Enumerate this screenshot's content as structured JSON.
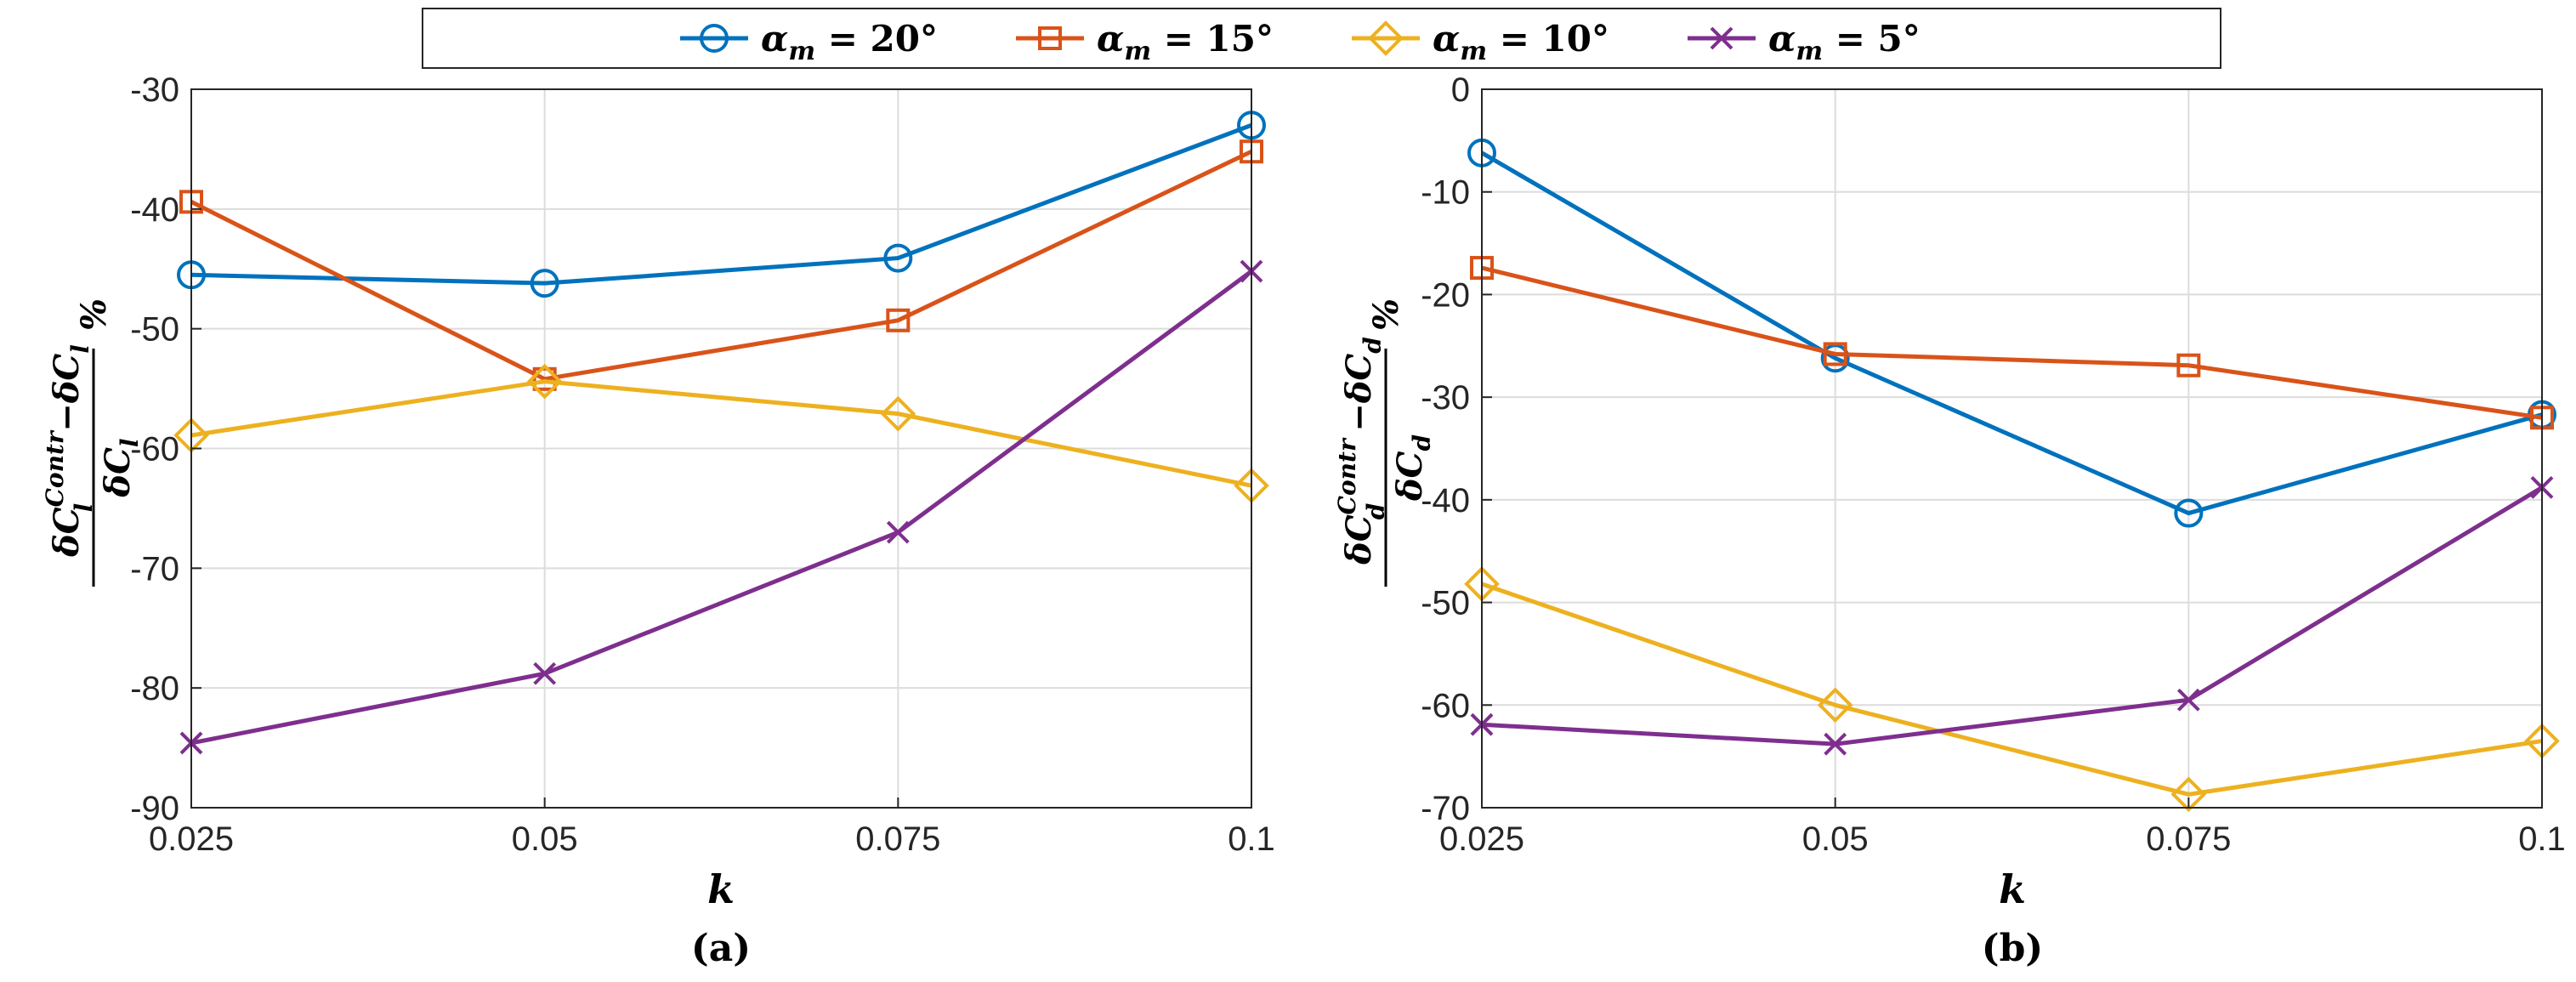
{
  "colors": {
    "s20": "#0072BD",
    "s15": "#D95319",
    "s10": "#EDB120",
    "s5": "#7E2F8E"
  },
  "legend": {
    "location": "top",
    "entries": [
      {
        "prefix": "α",
        "sub": "m",
        "eq": " = 20°",
        "marker": "circle",
        "color": "#0072BD"
      },
      {
        "prefix": "α",
        "sub": "m",
        "eq": " = 15°",
        "marker": "square",
        "color": "#D95319"
      },
      {
        "prefix": "α",
        "sub": "m",
        "eq": " = 10°",
        "marker": "diamond",
        "color": "#EDB120"
      },
      {
        "prefix": "α",
        "sub": "m",
        "eq": " = 5°",
        "marker": "x",
        "color": "#7E2F8E"
      }
    ]
  },
  "chart_data": [
    {
      "type": "line",
      "panel_label": "(a)",
      "xlabel": "k",
      "ylabel": {
        "num_a": "δC",
        "num_a_sup": "Contr",
        "num_a_sub": "l",
        "num_b": " −δC",
        "num_b_sub": "l",
        "den": "δC",
        "den_sub": "l",
        "pct": "%"
      },
      "x": [
        0.025,
        0.05,
        0.075,
        0.1
      ],
      "xticks": [
        "0.025",
        "0.05",
        "0.075",
        "0.1"
      ],
      "xlim": [
        0.025,
        0.1
      ],
      "ylim": [
        -90,
        -30
      ],
      "yticks": [
        "-30",
        "-40",
        "-50",
        "-60",
        "-70",
        "-80",
        "-90"
      ],
      "grid": true,
      "series": [
        {
          "name": "αm = 20°",
          "marker": "circle",
          "color": "#0072BD",
          "values": [
            -45.5,
            -46.2,
            -44.1,
            -33.0
          ]
        },
        {
          "name": "αm = 15°",
          "marker": "square",
          "color": "#D95319",
          "values": [
            -39.4,
            -54.2,
            -49.3,
            -35.2
          ]
        },
        {
          "name": "αm = 10°",
          "marker": "diamond",
          "color": "#EDB120",
          "values": [
            -58.9,
            -54.4,
            -57.1,
            -63.1
          ]
        },
        {
          "name": "αm = 5°",
          "marker": "x",
          "color": "#7E2F8E",
          "values": [
            -84.6,
            -78.8,
            -67.0,
            -45.2
          ]
        }
      ]
    },
    {
      "type": "line",
      "panel_label": "(b)",
      "xlabel": "k",
      "ylabel": {
        "num_a": "δC",
        "num_a_sup": "Contr",
        "num_a_sub": "d",
        "num_b": " −δC",
        "num_b_sub": "d",
        "den": "δC",
        "den_sub": "d",
        "pct": "%"
      },
      "x": [
        0.025,
        0.05,
        0.075,
        0.1
      ],
      "xticks": [
        "0.025",
        "0.05",
        "0.075",
        "0.1"
      ],
      "xlim": [
        0.025,
        0.1
      ],
      "ylim": [
        -70,
        0
      ],
      "yticks": [
        "0",
        "-10",
        "-20",
        "-30",
        "-40",
        "-50",
        "-60",
        "-70"
      ],
      "grid": true,
      "series": [
        {
          "name": "αm = 20°",
          "marker": "circle",
          "color": "#0072BD",
          "values": [
            -6.2,
            -26.2,
            -41.3,
            -31.7
          ]
        },
        {
          "name": "αm = 15°",
          "marker": "square",
          "color": "#D95319",
          "values": [
            -17.4,
            -25.8,
            -26.9,
            -32.0
          ]
        },
        {
          "name": "αm = 10°",
          "marker": "diamond",
          "color": "#EDB120",
          "values": [
            -48.2,
            -60.0,
            -68.7,
            -63.5
          ]
        },
        {
          "name": "αm = 5°",
          "marker": "x",
          "color": "#7E2F8E",
          "values": [
            -61.9,
            -63.8,
            -59.5,
            -38.8
          ]
        }
      ]
    }
  ]
}
